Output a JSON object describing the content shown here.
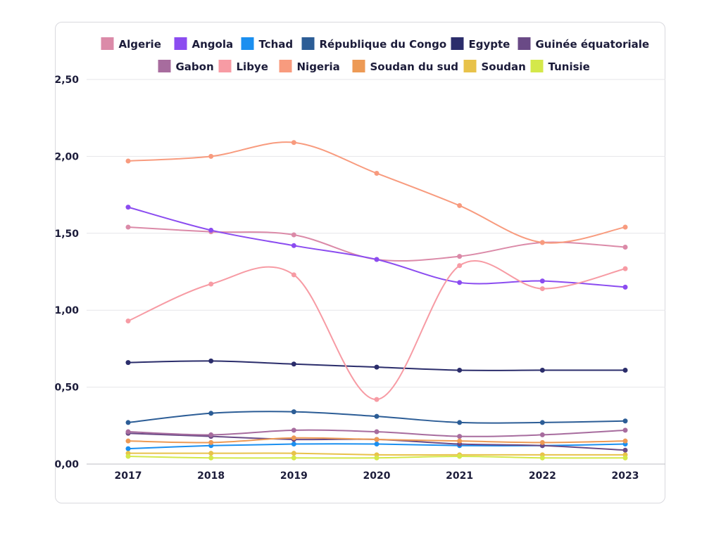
{
  "chart_data": {
    "type": "line",
    "title": "",
    "xlabel": "",
    "ylabel": "",
    "ylim": [
      0,
      2.5
    ],
    "yticks": [
      "0,00",
      "0,50",
      "1,00",
      "1,50",
      "2,00",
      "2,50"
    ],
    "x": [
      "2017",
      "2018",
      "2019",
      "2020",
      "2021",
      "2022",
      "2023"
    ],
    "grid": "horizontal",
    "legend_position": "top",
    "series": [
      {
        "name": "Algerie",
        "color": "#db8aa8",
        "values": [
          1.54,
          1.51,
          1.49,
          1.33,
          1.35,
          1.44,
          1.41
        ]
      },
      {
        "name": "Angola",
        "color": "#8b4cf0",
        "values": [
          1.67,
          1.52,
          1.42,
          1.33,
          1.18,
          1.19,
          1.15
        ]
      },
      {
        "name": "Tchad",
        "color": "#1a8ff0",
        "values": [
          0.1,
          0.12,
          0.13,
          0.13,
          0.12,
          0.12,
          0.13
        ]
      },
      {
        "name": "République du Congo",
        "color": "#2c5d96",
        "values": [
          0.27,
          0.33,
          0.34,
          0.31,
          0.27,
          0.27,
          0.28
        ]
      },
      {
        "name": "Egypte",
        "color": "#2b2d6b",
        "values": [
          0.66,
          0.67,
          0.65,
          0.63,
          0.61,
          0.61,
          0.61
        ]
      },
      {
        "name": "Guinée équatoriale",
        "color": "#6a4a86",
        "values": [
          0.2,
          0.18,
          0.16,
          0.16,
          0.13,
          0.12,
          0.09
        ]
      },
      {
        "name": "Gabon",
        "color": "#a76c9e",
        "values": [
          0.21,
          0.19,
          0.22,
          0.21,
          0.18,
          0.19,
          0.22
        ]
      },
      {
        "name": "Libye",
        "color": "#f79ba4",
        "values": [
          0.93,
          1.17,
          1.23,
          0.42,
          1.29,
          1.14,
          1.27
        ]
      },
      {
        "name": "Nigeria",
        "color": "#f89b7e",
        "values": [
          1.97,
          2.0,
          2.09,
          1.89,
          1.68,
          1.44,
          1.54
        ]
      },
      {
        "name": "Soudan du sud",
        "color": "#ed9a55",
        "values": [
          0.15,
          0.14,
          0.17,
          0.16,
          0.15,
          0.14,
          0.15
        ]
      },
      {
        "name": "Soudan",
        "color": "#e8c24a",
        "values": [
          0.07,
          0.07,
          0.07,
          0.06,
          0.06,
          0.06,
          0.06
        ]
      },
      {
        "name": "Tunisie",
        "color": "#d4e84a",
        "values": [
          0.05,
          0.04,
          0.04,
          0.04,
          0.05,
          0.04,
          0.04
        ]
      }
    ]
  }
}
